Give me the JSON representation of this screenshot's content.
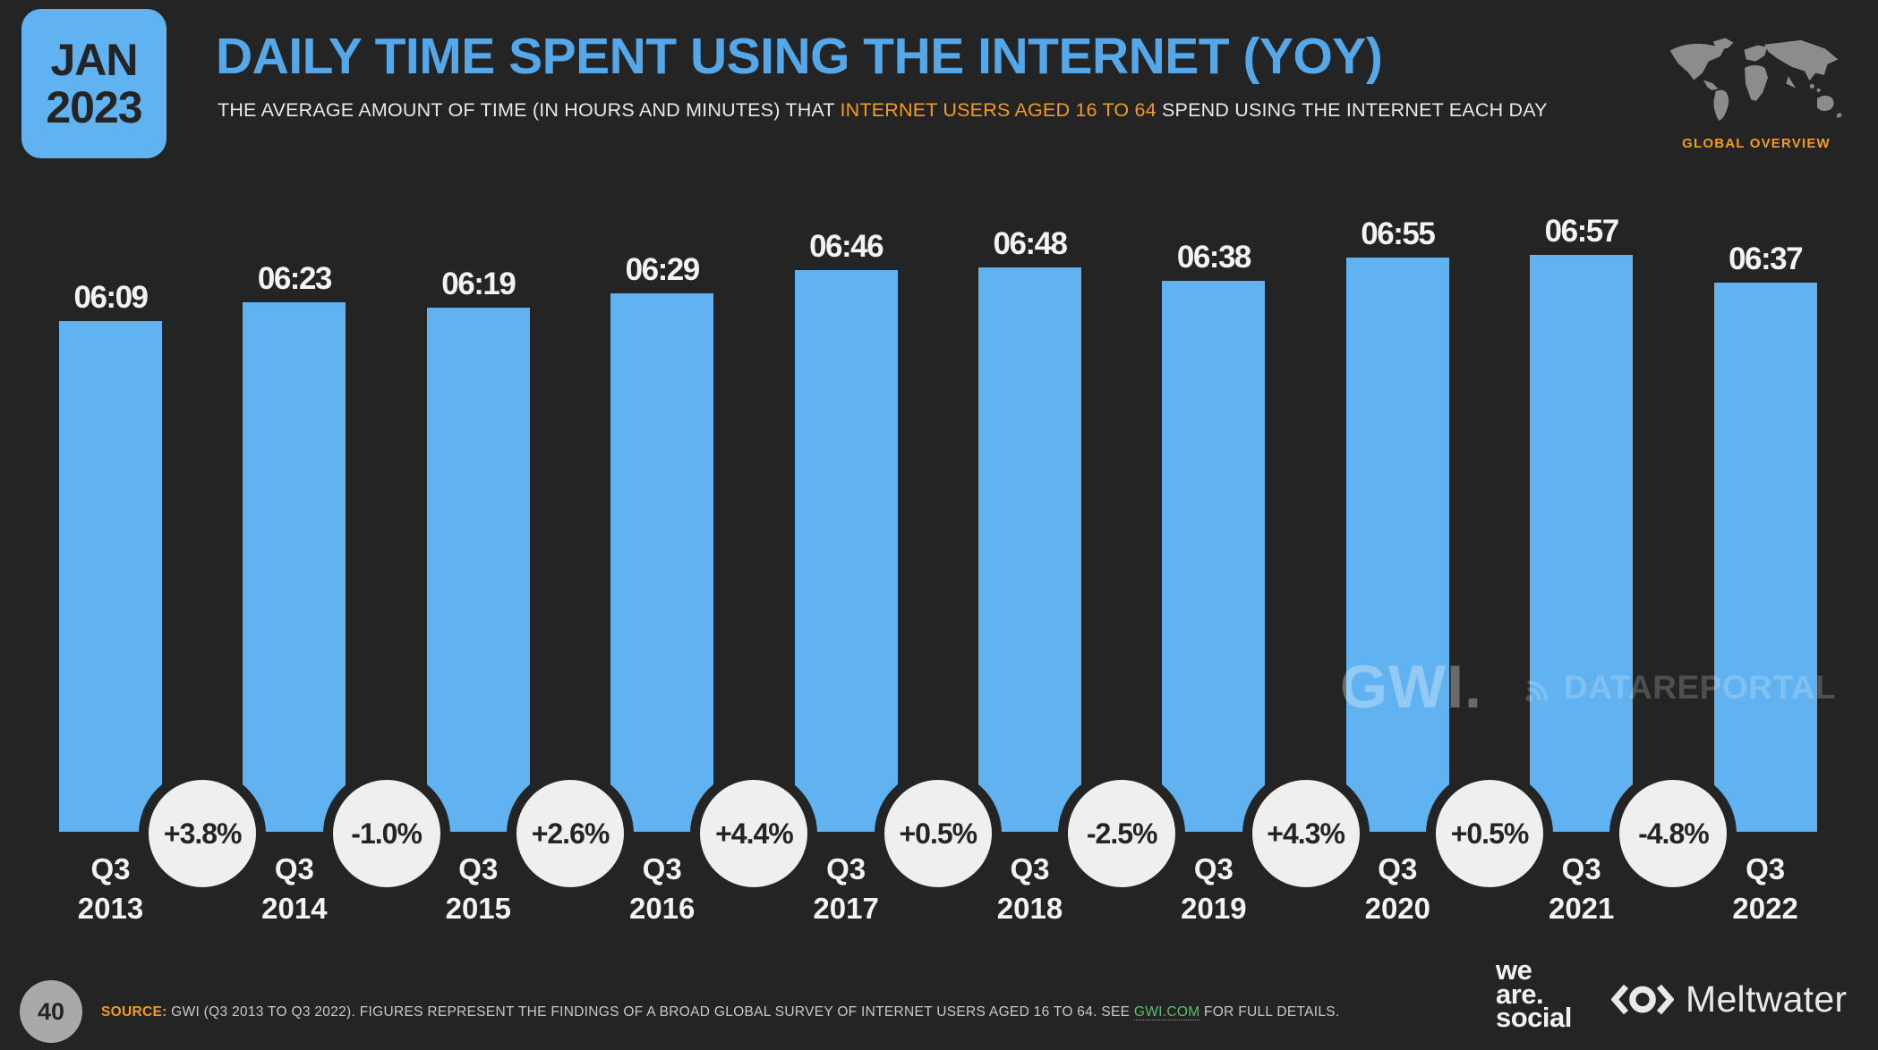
{
  "badge": {
    "month": "JAN",
    "year": "2023"
  },
  "header": {
    "title": "DAILY TIME SPENT USING THE INTERNET (YOY)",
    "subtitle_prefix": "THE AVERAGE AMOUNT OF TIME (IN HOURS AND MINUTES) THAT ",
    "subtitle_highlight": "INTERNET USERS AGED 16 TO 64",
    "subtitle_suffix": " SPEND USING THE INTERNET EACH DAY",
    "region_label": "GLOBAL OVERVIEW"
  },
  "chart_data": {
    "type": "bar",
    "title": "Daily time spent using the internet (YoY)",
    "unit": "hours:minutes per day",
    "categories": [
      "Q3 2013",
      "Q3 2014",
      "Q3 2015",
      "Q3 2016",
      "Q3 2017",
      "Q3 2018",
      "Q3 2019",
      "Q3 2020",
      "Q3 2021",
      "Q3 2022"
    ],
    "bars": [
      {
        "category_line1": "Q3",
        "category_line2": "2013",
        "time": "06:09",
        "minutes": 369
      },
      {
        "category_line1": "Q3",
        "category_line2": "2014",
        "time": "06:23",
        "minutes": 383
      },
      {
        "category_line1": "Q3",
        "category_line2": "2015",
        "time": "06:19",
        "minutes": 379
      },
      {
        "category_line1": "Q3",
        "category_line2": "2016",
        "time": "06:29",
        "minutes": 389
      },
      {
        "category_line1": "Q3",
        "category_line2": "2017",
        "time": "06:46",
        "minutes": 406
      },
      {
        "category_line1": "Q3",
        "category_line2": "2018",
        "time": "06:48",
        "minutes": 408
      },
      {
        "category_line1": "Q3",
        "category_line2": "2019",
        "time": "06:38",
        "minutes": 398
      },
      {
        "category_line1": "Q3",
        "category_line2": "2020",
        "time": "06:55",
        "minutes": 415
      },
      {
        "category_line1": "Q3",
        "category_line2": "2021",
        "time": "06:57",
        "minutes": 417
      },
      {
        "category_line1": "Q3",
        "category_line2": "2022",
        "time": "06:37",
        "minutes": 397
      }
    ],
    "yoy_change_pct": [
      "+3.8%",
      "-1.0%",
      "+2.6%",
      "+4.4%",
      "+0.5%",
      "-2.5%",
      "+4.3%",
      "+0.5%",
      "-4.8%"
    ],
    "ylim_minutes": [
      0,
      417
    ],
    "grid": false,
    "legend": "none",
    "bar_color": "#60b2f1",
    "value_label_color": "#f3f3f3",
    "yoy_circle_fill": "#efefef",
    "yoy_circle_text": "#242424"
  },
  "watermarks": {
    "gwi": "GWI.",
    "datareportal": "DATAREPORTAL"
  },
  "footer": {
    "page_number": "40",
    "source_label": "SOURCE:",
    "source_text_1": " GWI (Q3 2013 TO Q3 2022). FIGURES REPRESENT THE FINDINGS OF A BROAD GLOBAL SURVEY OF INTERNET USERS AGED 16 TO 64. SEE ",
    "source_link": "GWI.COM",
    "source_text_2": " FOR FULL DETAILS.",
    "wearesocial_lines": {
      "0": "we",
      "1": "are.",
      "2": "social"
    },
    "meltwater": "Meltwater"
  },
  "colors": {
    "background": "#242424",
    "bar_blue": "#60b2f1",
    "title_blue": "#54a8ea",
    "accent_orange": "#f39b1d",
    "link_green": "#5cbd6e",
    "text_light": "#f3f3f3"
  }
}
